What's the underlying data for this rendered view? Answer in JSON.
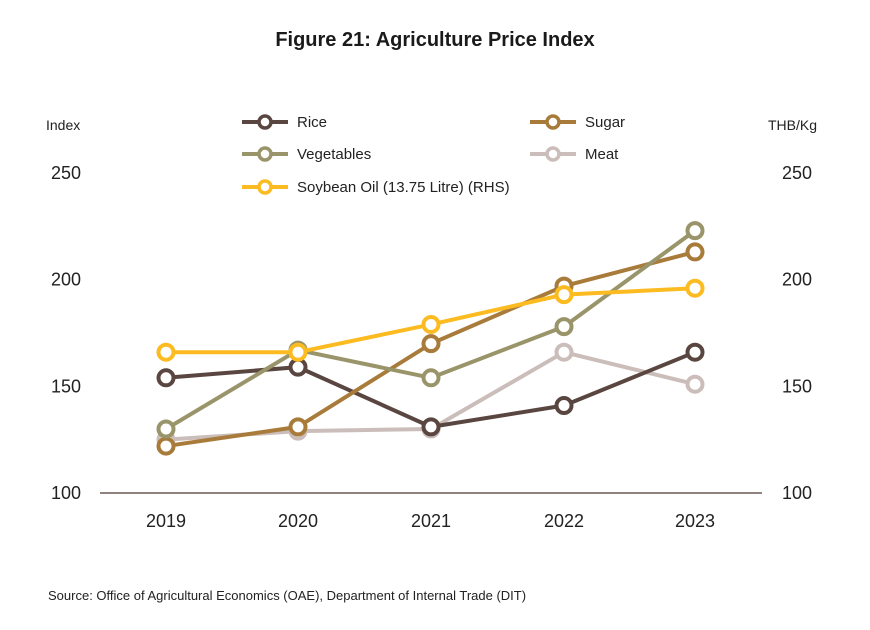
{
  "source": "Source: Office of Agricultural Economics (OAE), Department of Internal Trade (DIT)",
  "chart_data": {
    "type": "line",
    "title": "Figure 21: Agriculture Price Index",
    "y_left_label": "Index",
    "y_right_label": "THB/Kg",
    "categories": [
      "2019",
      "2020",
      "2021",
      "2022",
      "2023"
    ],
    "ylim_left": [
      100,
      250
    ],
    "ylim_right": [
      100,
      250
    ],
    "yticks_left": [
      100,
      150,
      200,
      250
    ],
    "yticks_right": [
      100,
      150,
      200,
      250
    ],
    "grid": false,
    "legend_position": "top",
    "series": [
      {
        "name": "Rice",
        "axis": "left",
        "color": "#5a4640",
        "values": [
          154,
          159,
          131,
          141,
          166
        ]
      },
      {
        "name": "Sugar",
        "axis": "left",
        "color": "#a87b3a",
        "values": [
          122,
          131,
          170,
          197,
          213
        ]
      },
      {
        "name": "Vegetables",
        "axis": "left",
        "color": "#9a946a",
        "values": [
          130,
          167,
          154,
          178,
          223
        ]
      },
      {
        "name": "Meat",
        "axis": "left",
        "color": "#cbbdb9",
        "values": [
          125,
          129,
          130,
          166,
          151
        ]
      },
      {
        "name": "Soybean Oil (13.75 Litre) (RHS)",
        "axis": "right",
        "color": "#fbbb21",
        "values": [
          166,
          166,
          179,
          193,
          196
        ]
      }
    ]
  }
}
